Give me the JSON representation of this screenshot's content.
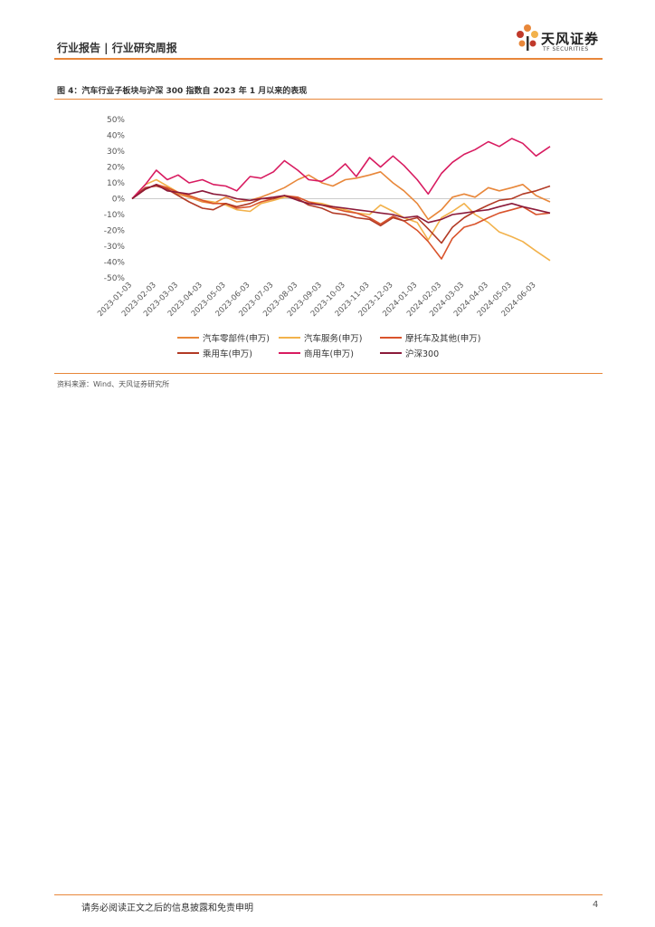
{
  "header": {
    "title": "行业报告 | 行业研究周报"
  },
  "logo": {
    "name": "天风证券",
    "sub": "TF SECURITIES",
    "petal_colors": [
      "#e8873a",
      "#c0392b",
      "#f2b24c",
      "#333333"
    ]
  },
  "figure": {
    "caption": "图 4：汽车行业子板块与沪深 300 指数自 2023 年 1 月以来的表现",
    "source": "资料来源：Wind、天风证券研究所"
  },
  "footer": {
    "note": "请务必阅读正文之后的信息披露和免责申明",
    "page": "4"
  },
  "chart_data": {
    "type": "line",
    "title": "",
    "xlabel": "",
    "ylabel": "",
    "ylim": [
      -50,
      50
    ],
    "y_ticks": [
      "50%",
      "40%",
      "30%",
      "20%",
      "10%",
      "0%",
      "-10%",
      "-20%",
      "-30%",
      "-40%",
      "-50%"
    ],
    "x_ticks": [
      "2023-01-03",
      "2023-02-03",
      "2023-03-03",
      "2023-04-03",
      "2023-05-03",
      "2023-06-03",
      "2023-07-03",
      "2023-08-03",
      "2023-09-03",
      "2023-10-03",
      "2023-11-03",
      "2023-12-03",
      "2024-01-03",
      "2024-02-03",
      "2024-03-03",
      "2024-04-03",
      "2024-05-03",
      "2024-06-03"
    ],
    "x_range": [
      "2023-01-03",
      "2024-06-21"
    ],
    "grid": false,
    "legend_position": "bottom",
    "series": [
      {
        "name": "汽车零部件(申万)",
        "color": "#e8873a",
        "dates": [
          "2023-01-03",
          "2023-01-20",
          "2023-02-03",
          "2023-02-17",
          "2023-03-03",
          "2023-03-17",
          "2023-04-03",
          "2023-04-17",
          "2023-05-03",
          "2023-05-17",
          "2023-06-03",
          "2023-06-17",
          "2023-07-03",
          "2023-07-17",
          "2023-08-03",
          "2023-08-17",
          "2023-09-03",
          "2023-09-17",
          "2023-10-03",
          "2023-10-17",
          "2023-11-03",
          "2023-11-17",
          "2023-12-03",
          "2023-12-17",
          "2024-01-03",
          "2024-01-17",
          "2024-02-03",
          "2024-02-17",
          "2024-03-03",
          "2024-03-17",
          "2024-04-03",
          "2024-04-17",
          "2024-05-03",
          "2024-05-17",
          "2024-06-03",
          "2024-06-21"
        ],
        "values": [
          0,
          6,
          9,
          6,
          3,
          1,
          -2,
          -3,
          1,
          -2,
          -1,
          1,
          4,
          7,
          12,
          15,
          10,
          8,
          12,
          13,
          15,
          17,
          10,
          5,
          -3,
          -13,
          -7,
          1,
          3,
          1,
          7,
          5,
          7,
          9,
          2,
          -2
        ]
      },
      {
        "name": "汽车服务(申万)",
        "color": "#f2b24c",
        "dates": [
          "2023-01-03",
          "2023-01-20",
          "2023-02-03",
          "2023-02-17",
          "2023-03-03",
          "2023-03-17",
          "2023-04-03",
          "2023-04-17",
          "2023-05-03",
          "2023-05-17",
          "2023-06-03",
          "2023-06-17",
          "2023-07-03",
          "2023-07-17",
          "2023-08-03",
          "2023-08-17",
          "2023-09-03",
          "2023-09-17",
          "2023-10-03",
          "2023-10-17",
          "2023-11-03",
          "2023-11-17",
          "2023-12-03",
          "2023-12-17",
          "2024-01-03",
          "2024-01-17",
          "2024-02-03",
          "2024-02-17",
          "2024-03-03",
          "2024-03-17",
          "2024-04-03",
          "2024-04-17",
          "2024-05-03",
          "2024-05-17",
          "2024-06-03",
          "2024-06-21"
        ],
        "values": [
          0,
          9,
          12,
          8,
          4,
          2,
          -1,
          -2,
          -4,
          -7,
          -8,
          -3,
          -1,
          1,
          1,
          -2,
          -3,
          -5,
          -7,
          -9,
          -10,
          -4,
          -8,
          -12,
          -15,
          -26,
          -12,
          -8,
          -3,
          -10,
          -15,
          -21,
          -24,
          -27,
          -33,
          -39
        ]
      },
      {
        "name": "摩托车及其他(申万)",
        "color": "#d9532b",
        "dates": [
          "2023-01-03",
          "2023-01-20",
          "2023-02-03",
          "2023-02-17",
          "2023-03-03",
          "2023-03-17",
          "2023-04-03",
          "2023-04-17",
          "2023-05-03",
          "2023-05-17",
          "2023-06-03",
          "2023-06-17",
          "2023-07-03",
          "2023-07-17",
          "2023-08-03",
          "2023-08-17",
          "2023-09-03",
          "2023-09-17",
          "2023-10-03",
          "2023-10-17",
          "2023-11-03",
          "2023-11-17",
          "2023-12-03",
          "2023-12-17",
          "2024-01-03",
          "2024-01-17",
          "2024-02-03",
          "2024-02-17",
          "2024-03-03",
          "2024-03-17",
          "2024-04-03",
          "2024-04-17",
          "2024-05-03",
          "2024-05-17",
          "2024-06-03",
          "2024-06-21"
        ],
        "values": [
          0,
          6,
          9,
          7,
          4,
          2,
          -1,
          -3,
          -3,
          -6,
          -5,
          -2,
          0,
          2,
          1,
          -2,
          -4,
          -6,
          -8,
          -9,
          -12,
          -16,
          -11,
          -14,
          -20,
          -27,
          -38,
          -25,
          -18,
          -16,
          -12,
          -9,
          -7,
          -5,
          -10,
          -9
        ]
      },
      {
        "name": "乘用车(申万)",
        "color": "#b23a25",
        "dates": [
          "2023-01-03",
          "2023-01-20",
          "2023-02-03",
          "2023-02-17",
          "2023-03-03",
          "2023-03-17",
          "2023-04-03",
          "2023-04-17",
          "2023-05-03",
          "2023-05-17",
          "2023-06-03",
          "2023-06-17",
          "2023-07-03",
          "2023-07-17",
          "2023-08-03",
          "2023-08-17",
          "2023-09-03",
          "2023-09-17",
          "2023-10-03",
          "2023-10-17",
          "2023-11-03",
          "2023-11-17",
          "2023-12-03",
          "2023-12-17",
          "2024-01-03",
          "2024-01-17",
          "2024-02-03",
          "2024-02-17",
          "2024-03-03",
          "2024-03-17",
          "2024-04-03",
          "2024-04-17",
          "2024-05-03",
          "2024-05-17",
          "2024-06-03",
          "2024-06-21"
        ],
        "values": [
          0,
          7,
          8,
          6,
          2,
          -2,
          -6,
          -7,
          -3,
          -5,
          -3,
          0,
          0,
          2,
          0,
          -4,
          -6,
          -9,
          -10,
          -12,
          -13,
          -17,
          -12,
          -14,
          -12,
          -19,
          -28,
          -18,
          -12,
          -8,
          -4,
          -1,
          0,
          3,
          5,
          8
        ]
      },
      {
        "name": "商用车(申万)",
        "color": "#d81b60",
        "dates": [
          "2023-01-03",
          "2023-01-20",
          "2023-02-03",
          "2023-02-17",
          "2023-03-03",
          "2023-03-17",
          "2023-04-03",
          "2023-04-17",
          "2023-05-03",
          "2023-05-17",
          "2023-06-03",
          "2023-06-17",
          "2023-07-03",
          "2023-07-17",
          "2023-08-03",
          "2023-08-17",
          "2023-09-03",
          "2023-09-17",
          "2023-10-03",
          "2023-10-17",
          "2023-11-03",
          "2023-11-17",
          "2023-12-03",
          "2023-12-17",
          "2024-01-03",
          "2024-01-17",
          "2024-02-03",
          "2024-02-17",
          "2024-03-03",
          "2024-03-17",
          "2024-04-03",
          "2024-04-17",
          "2024-05-03",
          "2024-05-17",
          "2024-06-03",
          "2024-06-21"
        ],
        "values": [
          0,
          9,
          18,
          12,
          15,
          10,
          12,
          9,
          8,
          5,
          14,
          13,
          17,
          24,
          18,
          12,
          11,
          15,
          22,
          14,
          26,
          20,
          27,
          21,
          12,
          3,
          16,
          23,
          28,
          31,
          36,
          33,
          38,
          35,
          27,
          33
        ]
      },
      {
        "name": "沪深300",
        "color": "#8b1a3a",
        "dates": [
          "2023-01-03",
          "2023-01-20",
          "2023-02-03",
          "2023-02-17",
          "2023-03-03",
          "2023-03-17",
          "2023-04-03",
          "2023-04-17",
          "2023-05-03",
          "2023-05-17",
          "2023-06-03",
          "2023-06-17",
          "2023-07-03",
          "2023-07-17",
          "2023-08-03",
          "2023-08-17",
          "2023-09-03",
          "2023-09-17",
          "2023-10-03",
          "2023-10-17",
          "2023-11-03",
          "2023-11-17",
          "2023-12-03",
          "2023-12-17",
          "2024-01-03",
          "2024-01-17",
          "2024-02-03",
          "2024-02-17",
          "2024-03-03",
          "2024-03-17",
          "2024-04-03",
          "2024-04-17",
          "2024-05-03",
          "2024-05-17",
          "2024-06-03",
          "2024-06-21"
        ],
        "values": [
          0,
          6,
          9,
          5,
          4,
          3,
          5,
          3,
          2,
          0,
          -1,
          0,
          1,
          2,
          -1,
          -3,
          -4,
          -5,
          -6,
          -7,
          -8,
          -9,
          -10,
          -12,
          -11,
          -15,
          -13,
          -10,
          -9,
          -8,
          -7,
          -5,
          -3,
          -5,
          -7,
          -9
        ]
      }
    ]
  }
}
